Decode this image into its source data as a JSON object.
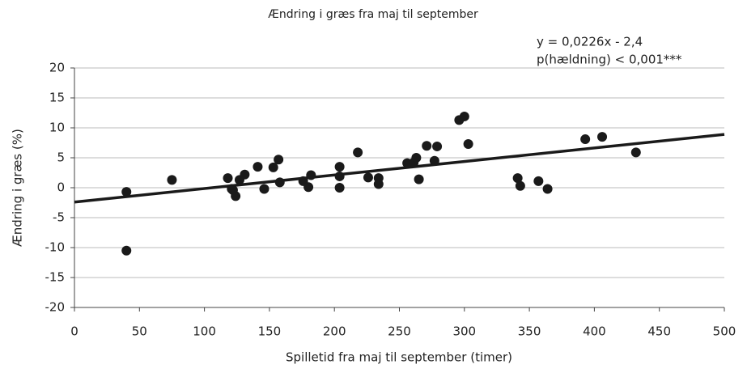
{
  "chart_data": {
    "type": "scatter",
    "title": "Ændring i græs fra maj til september",
    "x_label": "Spilletid fra maj til september (timer)",
    "y_label": "Ændring i græs (%)",
    "annotations": [
      "y = 0,0226x - 2,4",
      "p(hældning) < 0,001***"
    ],
    "trend": {
      "slope": 0.0226,
      "intercept": -2.4,
      "color": "#1a1a1a"
    },
    "series": [
      {
        "name": null,
        "color": "#1a1a1a",
        "x": [
          40,
          40,
          75,
          118,
          121,
          122,
          124,
          127,
          131,
          141,
          146,
          153,
          157,
          158,
          176,
          180,
          182,
          204,
          204,
          204,
          218,
          226,
          234,
          234,
          256,
          261,
          263,
          265,
          271,
          277,
          279,
          296,
          300,
          303,
          341,
          343,
          357,
          364,
          393,
          406,
          432
        ],
        "values": [
          -0.7,
          -10.5,
          1.3,
          1.6,
          -0.2,
          -0.4,
          -1.4,
          1.3,
          2.2,
          3.5,
          -0.2,
          3.4,
          4.7,
          0.9,
          1.1,
          0.1,
          2.1,
          3.5,
          1.9,
          0,
          5.9,
          1.7,
          1.6,
          0.6,
          4.1,
          4.2,
          5,
          1.4,
          7,
          4.5,
          6.9,
          11.3,
          11.9,
          7.3,
          1.6,
          0.3,
          1.1,
          -0.2,
          8.1,
          8.5,
          5.9
        ]
      }
    ],
    "xlim": [
      0,
      500
    ],
    "xticks": [
      0,
      50,
      100,
      150,
      200,
      250,
      300,
      350,
      400,
      450,
      500
    ],
    "ylim": [
      -20,
      20
    ],
    "yticks": [
      -20,
      -15,
      -10,
      -5,
      0,
      5,
      10,
      15,
      20
    ],
    "grid": true
  }
}
